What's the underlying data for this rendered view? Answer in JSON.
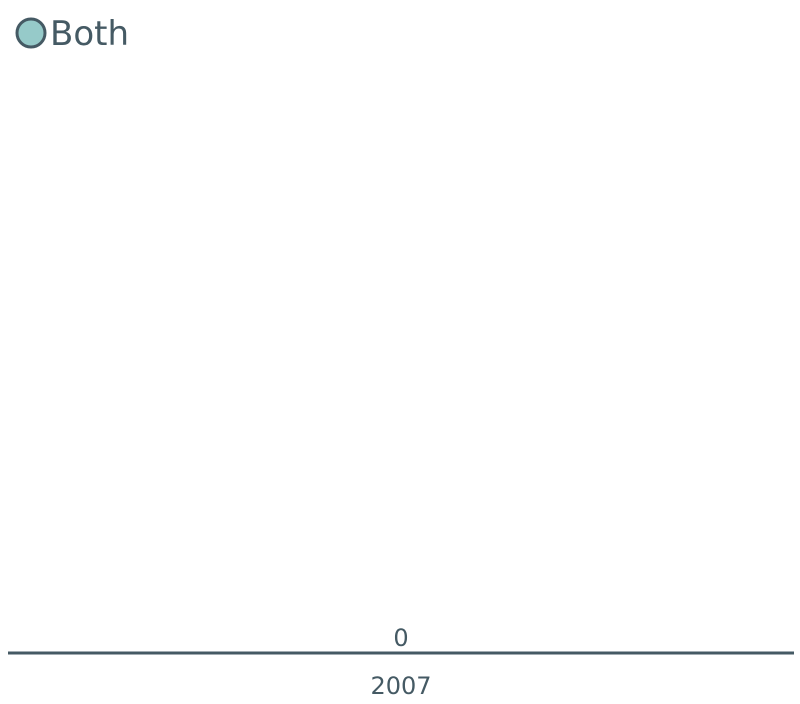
{
  "chart_data": {
    "type": "bar",
    "categories": [
      "2007"
    ],
    "series": [
      {
        "name": "Both",
        "values": [
          0
        ],
        "color": "#96cac9"
      }
    ],
    "data_labels": [
      "0"
    ],
    "legend_position": "top-left",
    "grid": false,
    "ylim": [
      0,
      1
    ],
    "title": "",
    "xlabel": "",
    "ylabel": ""
  },
  "colors": {
    "axis": "#455a64",
    "text": "#455a64",
    "legend_marker_fill": "#96cac9",
    "legend_marker_stroke": "#455a64"
  }
}
